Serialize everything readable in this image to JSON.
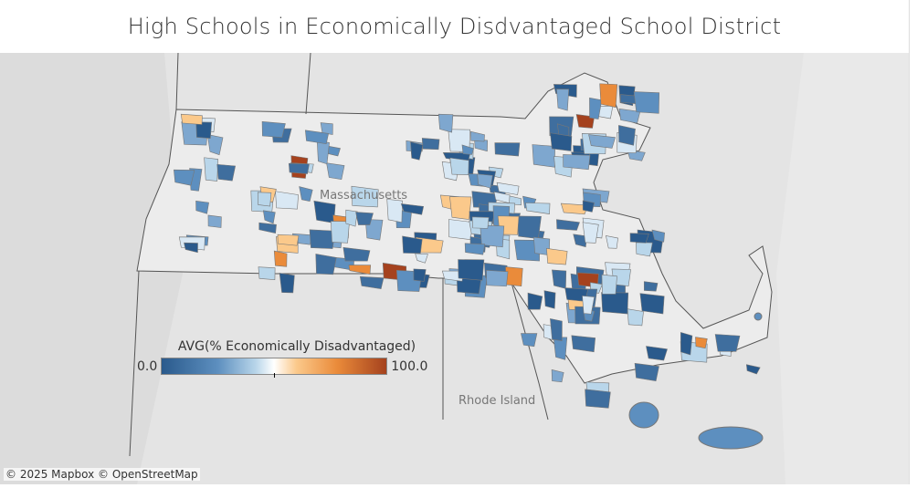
{
  "title": "High Schools in Economically Disdvantaged School District",
  "map": {
    "labels": {
      "state_ma": "Massachusetts",
      "state_ri": "Rhode Island"
    },
    "attribution": "© 2025 Mapbox © OpenStreetMap",
    "colors": {
      "low": "#2a5a8c",
      "mid_low": "#5d8fbf",
      "light": "#b9d6ea",
      "mid": "#ffffff",
      "mid_high": "#fbc98b",
      "high": "#ea8b3a",
      "max": "#a5421e",
      "land": "#e4e4e4",
      "border": "#555555"
    }
  },
  "legend": {
    "title": "AVG(% Economically Disadvantaged)",
    "min_label": "0.0",
    "max_label": "100.0",
    "min": 0,
    "max": 100
  }
}
